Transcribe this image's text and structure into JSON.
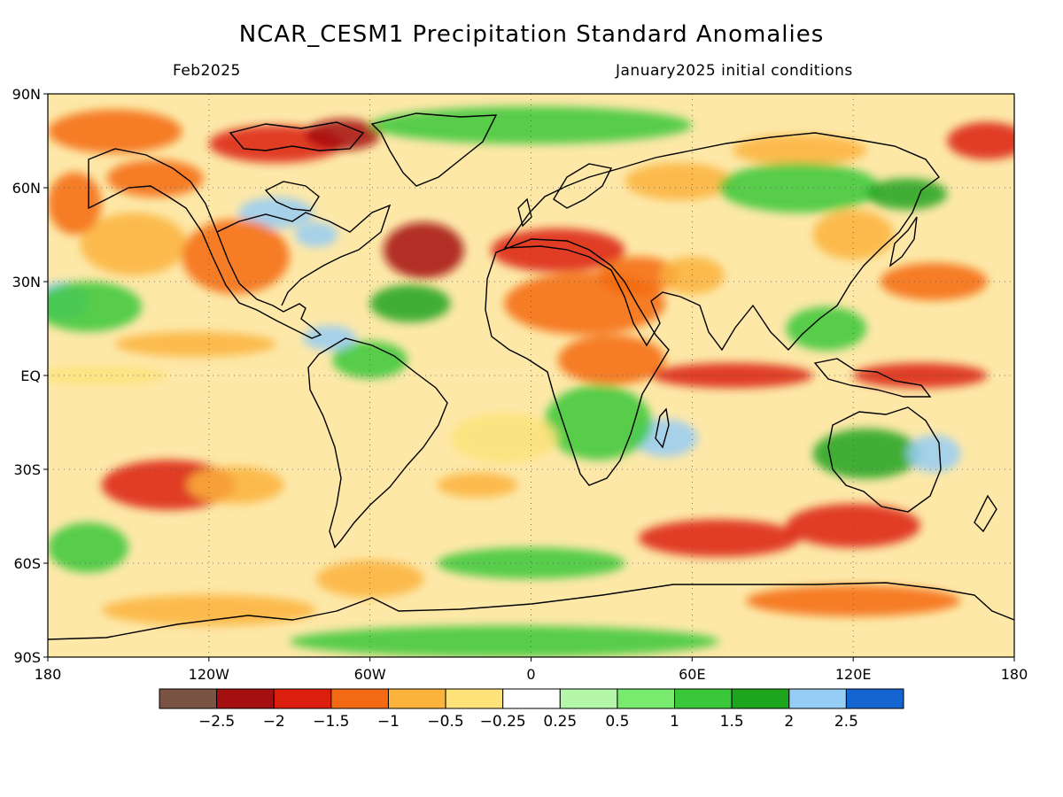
{
  "title": "NCAR_CESM1 Precipitation Standard Anomalies",
  "subtitle_left": "Feb2025",
  "subtitle_right": "January2025 initial conditions",
  "map": {
    "lon_range": [
      -180,
      180
    ],
    "lat_range": [
      -90,
      90
    ],
    "lat_ticks": [
      {
        "value": 90,
        "label": "90N"
      },
      {
        "value": 60,
        "label": "60N"
      },
      {
        "value": 30,
        "label": "30N"
      },
      {
        "value": 0,
        "label": "EQ"
      },
      {
        "value": -30,
        "label": "30S"
      },
      {
        "value": -60,
        "label": "60S"
      },
      {
        "value": -90,
        "label": "90S"
      }
    ],
    "lon_ticks": [
      {
        "value": -180,
        "label": "180"
      },
      {
        "value": -120,
        "label": "120W"
      },
      {
        "value": -60,
        "label": "60W"
      },
      {
        "value": 0,
        "label": "0"
      },
      {
        "value": 60,
        "label": "60E"
      },
      {
        "value": 120,
        "label": "120E"
      },
      {
        "value": 180,
        "label": "180"
      }
    ],
    "grid_lines": "dotted"
  },
  "colorbar": {
    "colors": [
      "#7a5344",
      "#a50f0f",
      "#dc1e0f",
      "#f46a12",
      "#fbb33c",
      "#fde37a",
      "#ffffff",
      "#b4f7a8",
      "#78eb6e",
      "#3ac83a",
      "#1ea51e",
      "#96cdf5",
      "#1464d2"
    ],
    "labels": [
      "−2.5",
      "−2",
      "−1.5",
      "−1",
      "−0.5",
      "−0.25",
      "0.25",
      "0.5",
      "1",
      "1.5",
      "2",
      "2.5"
    ]
  },
  "anomaly_regions": [
    {
      "lon": -155,
      "lat": 78,
      "rx": 25,
      "ry": 7,
      "level": 3
    },
    {
      "lon": -95,
      "lat": 74,
      "rx": 25,
      "ry": 6,
      "level": 2
    },
    {
      "lon": -70,
      "lat": 77,
      "rx": 14,
      "ry": 5,
      "level": 1
    },
    {
      "lon": -140,
      "lat": 63,
      "rx": 18,
      "ry": 6,
      "level": 3
    },
    {
      "lon": -95,
      "lat": 52,
      "rx": 14,
      "ry": 5,
      "level": 11
    },
    {
      "lon": -80,
      "lat": 45,
      "rx": 8,
      "ry": 4,
      "level": 11
    },
    {
      "lon": -148,
      "lat": 42,
      "rx": 20,
      "ry": 10,
      "level": 4
    },
    {
      "lon": -110,
      "lat": 38,
      "rx": 20,
      "ry": 12,
      "level": 3
    },
    {
      "lon": -40,
      "lat": 40,
      "rx": 15,
      "ry": 9,
      "level": 1
    },
    {
      "lon": -175,
      "lat": 24,
      "rx": 10,
      "ry": 6,
      "level": 11
    },
    {
      "lon": -165,
      "lat": 22,
      "rx": 20,
      "ry": 8,
      "level": 9
    },
    {
      "lon": -45,
      "lat": 23,
      "rx": 15,
      "ry": 6,
      "level": 10
    },
    {
      "lon": -125,
      "lat": 10,
      "rx": 30,
      "ry": 4,
      "level": 4
    },
    {
      "lon": -160,
      "lat": 0,
      "rx": 25,
      "ry": 3,
      "level": 5
    },
    {
      "lon": -60,
      "lat": 5,
      "rx": 14,
      "ry": 6,
      "level": 9
    },
    {
      "lon": -75,
      "lat": 12,
      "rx": 10,
      "ry": 4,
      "level": 11
    },
    {
      "lon": 10,
      "lat": 40,
      "rx": 25,
      "ry": 7,
      "level": 2
    },
    {
      "lon": 20,
      "lat": 23,
      "rx": 30,
      "ry": 10,
      "level": 3
    },
    {
      "lon": 40,
      "lat": 32,
      "rx": 15,
      "ry": 6,
      "level": 3
    },
    {
      "lon": 60,
      "lat": 32,
      "rx": 12,
      "ry": 6,
      "level": 4
    },
    {
      "lon": 30,
      "lat": 5,
      "rx": 20,
      "ry": 8,
      "level": 3
    },
    {
      "lon": 75,
      "lat": 0,
      "rx": 30,
      "ry": 4,
      "level": 2
    },
    {
      "lon": 145,
      "lat": 0,
      "rx": 25,
      "ry": 4,
      "level": 2
    },
    {
      "lon": 120,
      "lat": 45,
      "rx": 15,
      "ry": 8,
      "level": 4
    },
    {
      "lon": 150,
      "lat": 30,
      "rx": 20,
      "ry": 6,
      "level": 3
    },
    {
      "lon": 110,
      "lat": 15,
      "rx": 15,
      "ry": 7,
      "level": 9
    },
    {
      "lon": 55,
      "lat": 62,
      "rx": 20,
      "ry": 6,
      "level": 4
    },
    {
      "lon": 100,
      "lat": 72,
      "rx": 25,
      "ry": 5,
      "level": 4
    },
    {
      "lon": 170,
      "lat": 75,
      "rx": 15,
      "ry": 6,
      "level": 2
    },
    {
      "lon": 100,
      "lat": 60,
      "rx": 30,
      "ry": 8,
      "level": 9
    },
    {
      "lon": 140,
      "lat": 58,
      "rx": 15,
      "ry": 5,
      "level": 10
    },
    {
      "lon": 125,
      "lat": -25,
      "rx": 20,
      "ry": 8,
      "level": 10
    },
    {
      "lon": 150,
      "lat": -25,
      "rx": 10,
      "ry": 6,
      "level": 11
    },
    {
      "lon": 50,
      "lat": -20,
      "rx": 12,
      "ry": 6,
      "level": 11
    },
    {
      "lon": 25,
      "lat": -15,
      "rx": 20,
      "ry": 12,
      "level": 9
    },
    {
      "lon": -135,
      "lat": -35,
      "rx": 25,
      "ry": 8,
      "level": 2
    },
    {
      "lon": -110,
      "lat": -35,
      "rx": 18,
      "ry": 6,
      "level": 4
    },
    {
      "lon": -20,
      "lat": -35,
      "rx": 15,
      "ry": 4,
      "level": 4
    },
    {
      "lon": 70,
      "lat": -52,
      "rx": 30,
      "ry": 6,
      "level": 2
    },
    {
      "lon": 120,
      "lat": -48,
      "rx": 25,
      "ry": 7,
      "level": 2
    },
    {
      "lon": 120,
      "lat": -72,
      "rx": 40,
      "ry": 5,
      "level": 3
    },
    {
      "lon": -120,
      "lat": -75,
      "rx": 40,
      "ry": 5,
      "level": 4
    },
    {
      "lon": -165,
      "lat": -55,
      "rx": 15,
      "ry": 8,
      "level": 9
    },
    {
      "lon": -60,
      "lat": -65,
      "rx": 20,
      "ry": 6,
      "level": 4
    },
    {
      "lon": 0,
      "lat": -60,
      "rx": 35,
      "ry": 5,
      "level": 9
    },
    {
      "lon": -10,
      "lat": -20,
      "rx": 20,
      "ry": 8,
      "level": 5
    },
    {
      "lon": -170,
      "lat": 55,
      "rx": 10,
      "ry": 10,
      "level": 3
    },
    {
      "lon": 0,
      "lat": 80,
      "rx": 60,
      "ry": 6,
      "level": 9
    },
    {
      "lon": -10,
      "lat": -85,
      "rx": 80,
      "ry": 5,
      "level": 9
    }
  ]
}
